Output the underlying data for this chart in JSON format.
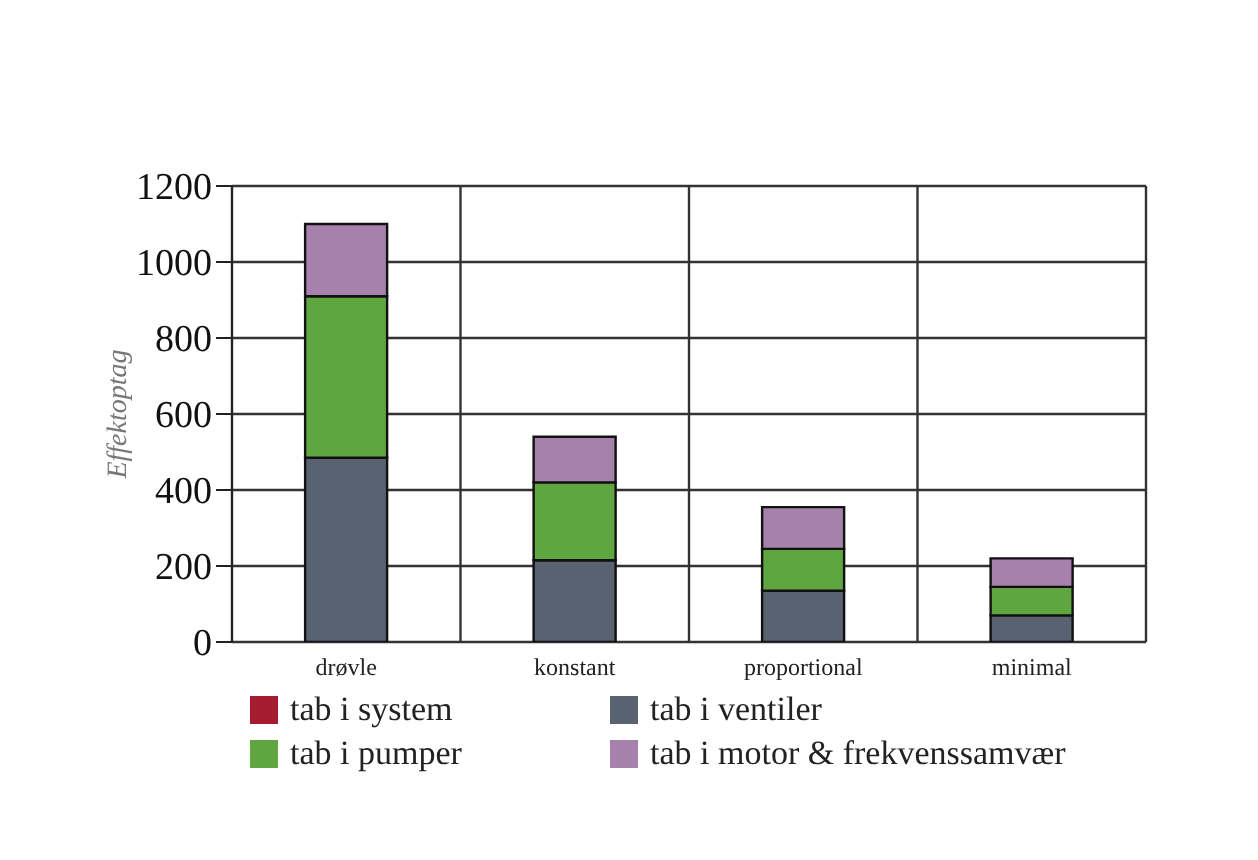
{
  "chart_data": {
    "type": "bar",
    "stacked": true,
    "ylabel": "Effektoptag",
    "categories": [
      "drøvle",
      "konstant",
      "proportional",
      "minimal"
    ],
    "series": [
      {
        "name": "tab i system",
        "color": "#a51c30",
        "values": [
          0,
          0,
          0,
          0
        ]
      },
      {
        "name": "tab i ventiler",
        "color": "#596270",
        "values": [
          485,
          215,
          135,
          70
        ]
      },
      {
        "name": "tab i pumper",
        "color": "#5fa640",
        "values": [
          425,
          205,
          110,
          75
        ]
      },
      {
        "name": "tab i motor & frekvenssamvær",
        "color": "#a581ab",
        "values": [
          190,
          120,
          110,
          75
        ]
      }
    ],
    "ylim": [
      0,
      1200
    ],
    "yticks": [
      0,
      200,
      400,
      600,
      800,
      1000,
      1200
    ],
    "grid": true,
    "legend": "bottom"
  }
}
